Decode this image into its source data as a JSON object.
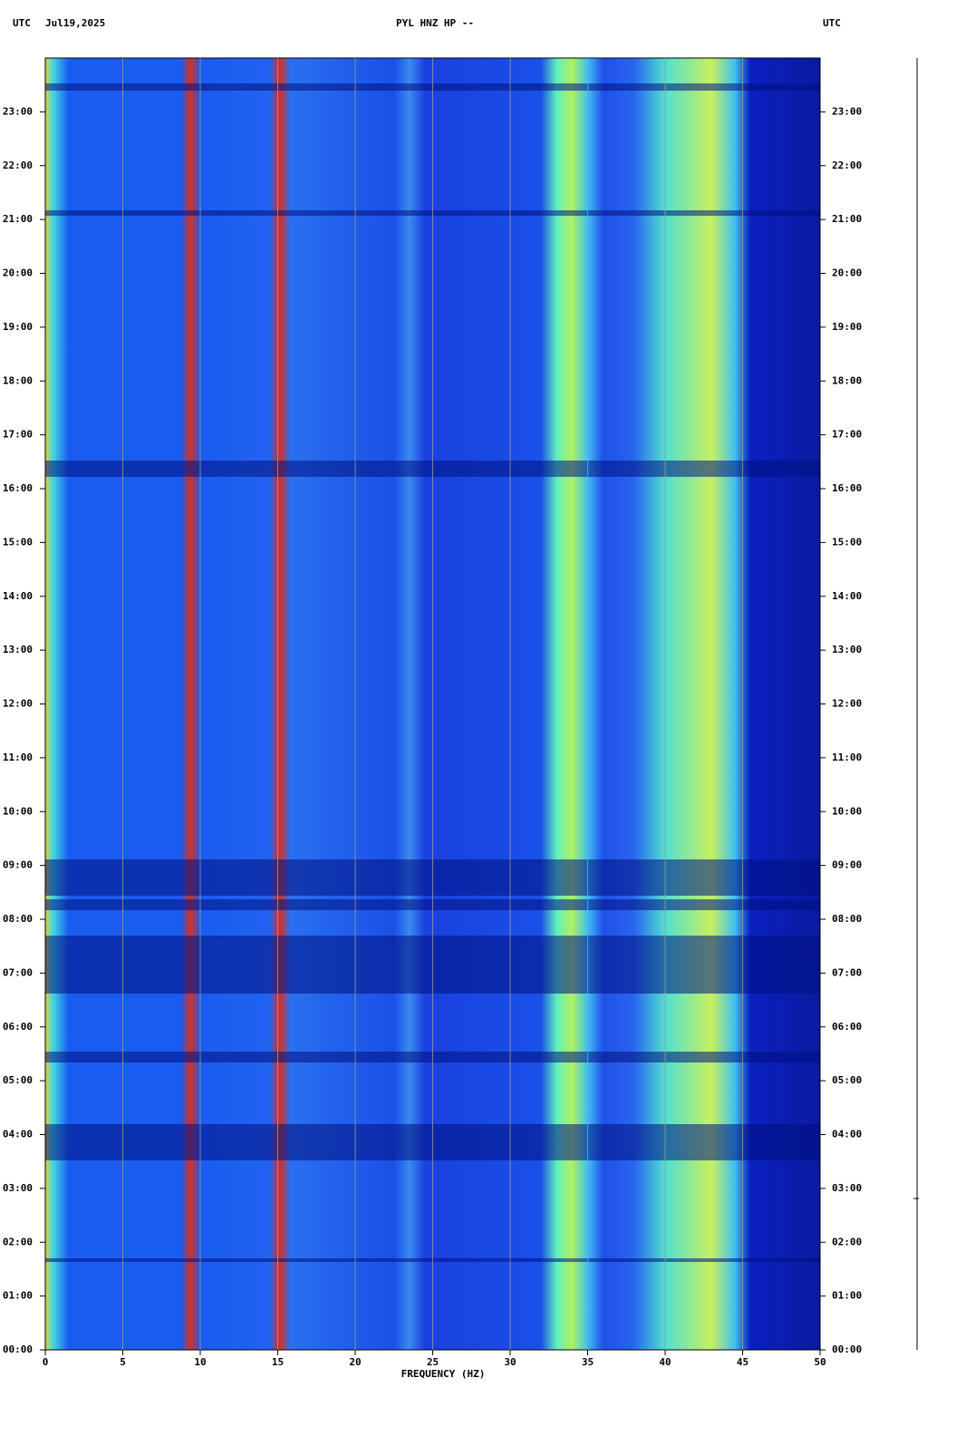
{
  "chart_data": {
    "type": "spectrogram",
    "title": "PYL HNZ HP --",
    "date": "Jul19,2025",
    "left_label": "UTC",
    "right_label": "UTC",
    "xlabel": "FREQUENCY (HZ)",
    "xlim": [
      0,
      50
    ],
    "xticks": [
      0,
      5,
      10,
      15,
      20,
      25,
      30,
      35,
      40,
      45,
      50
    ],
    "ylim": [
      0,
      24
    ],
    "yticks": [
      {
        "value": 0,
        "label": "00:00"
      },
      {
        "value": 1,
        "label": "01:00"
      },
      {
        "value": 2,
        "label": "02:00"
      },
      {
        "value": 3,
        "label": "03:00"
      },
      {
        "value": 4,
        "label": "04:00"
      },
      {
        "value": 5,
        "label": "05:00"
      },
      {
        "value": 6,
        "label": "06:00"
      },
      {
        "value": 7,
        "label": "07:00"
      },
      {
        "value": 8,
        "label": "08:00"
      },
      {
        "value": 9,
        "label": "09:00"
      },
      {
        "value": 10,
        "label": "10:00"
      },
      {
        "value": 11,
        "label": "11:00"
      },
      {
        "value": 12,
        "label": "12:00"
      },
      {
        "value": 13,
        "label": "13:00"
      },
      {
        "value": 14,
        "label": "14:00"
      },
      {
        "value": 15,
        "label": "15:00"
      },
      {
        "value": 16,
        "label": "16:00"
      },
      {
        "value": 17,
        "label": "17:00"
      },
      {
        "value": 18,
        "label": "18:00"
      },
      {
        "value": 19,
        "label": "19:00"
      },
      {
        "value": 20,
        "label": "20:00"
      },
      {
        "value": 21,
        "label": "21:00"
      },
      {
        "value": 22,
        "label": "22:00"
      },
      {
        "value": 23,
        "label": "23:00"
      }
    ],
    "grid": true
  }
}
